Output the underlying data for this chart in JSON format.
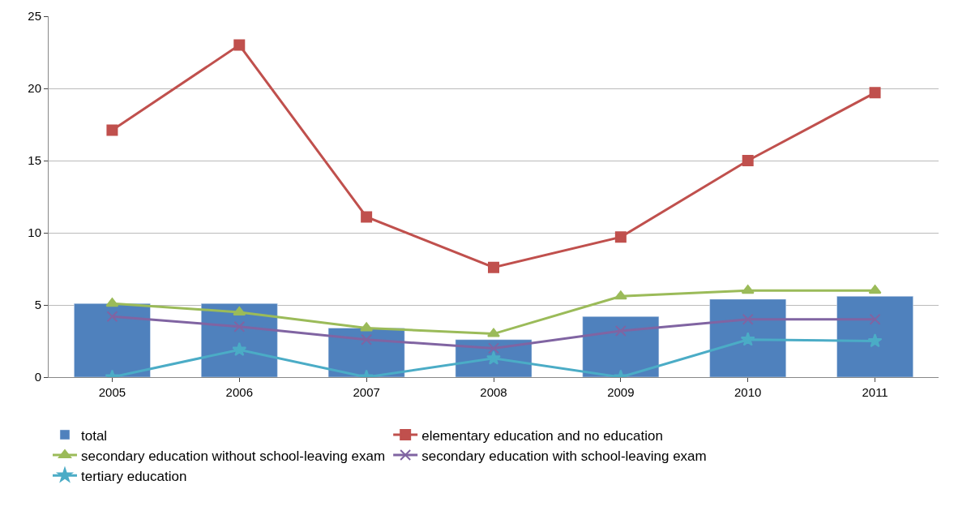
{
  "chart_data": {
    "type": "line",
    "categories": [
      "2005",
      "2006",
      "2007",
      "2008",
      "2009",
      "2010",
      "2011"
    ],
    "ylim": [
      0,
      25
    ],
    "yticks": [
      0,
      5,
      10,
      15,
      20,
      25
    ],
    "grid": "y",
    "legend": "bottom",
    "series": [
      {
        "name": "total",
        "type": "bar",
        "color": "#4f81bd",
        "values": [
          5.1,
          5.1,
          3.4,
          2.6,
          4.2,
          5.4,
          5.6
        ]
      },
      {
        "name": "elementary education and no education",
        "color": "#c0504d",
        "marker": "square",
        "values": [
          17.1,
          23.0,
          11.1,
          7.6,
          9.7,
          15.0,
          19.7
        ]
      },
      {
        "name": "secondary education without school-leaving exam",
        "color": "#9bbb59",
        "marker": "triangle",
        "values": [
          5.1,
          4.5,
          3.4,
          3.0,
          5.6,
          6.0,
          6.0
        ]
      },
      {
        "name": "secondary education with school-leaving exam",
        "color": "#8064a2",
        "marker": "cross",
        "values": [
          4.2,
          3.5,
          2.6,
          2.0,
          3.2,
          4.0,
          4.0
        ]
      },
      {
        "name": "tertiary education",
        "color": "#4bacc6",
        "marker": "star",
        "values": [
          0,
          1.9,
          0,
          1.3,
          0,
          2.6,
          2.5
        ]
      }
    ]
  }
}
